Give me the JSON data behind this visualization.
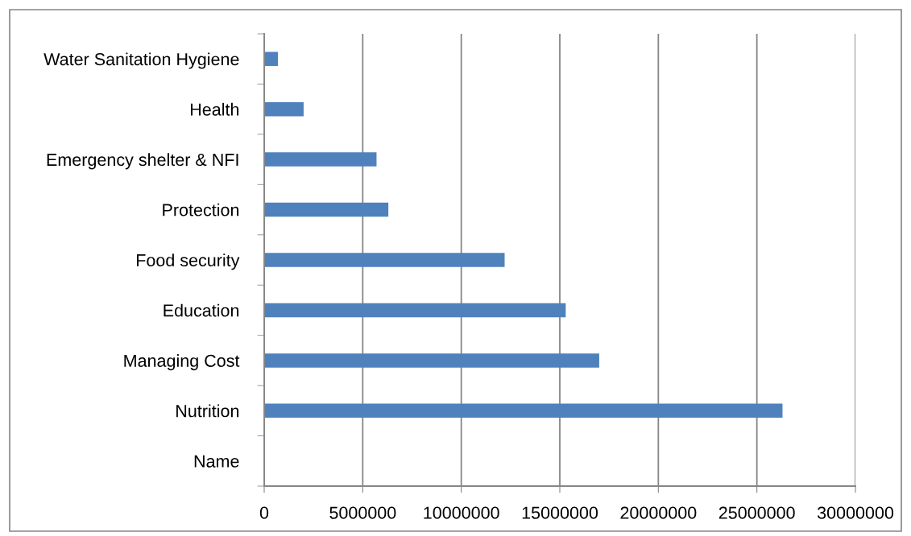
{
  "chart_data": {
    "type": "bar",
    "orientation": "horizontal",
    "categories": [
      "Water Sanitation Hygiene",
      "Health",
      "Emergency shelter & NFI",
      "Protection",
      "Food security",
      "Education",
      "Managing Cost",
      "Nutrition",
      "Name"
    ],
    "values": [
      700000,
      2000000,
      5700000,
      6300000,
      12200000,
      15300000,
      17000000,
      26300000,
      null
    ],
    "color": "#4f81bd",
    "xlim": [
      0,
      30000000
    ],
    "xticks": [
      0,
      5000000,
      10000000,
      15000000,
      20000000,
      25000000,
      30000000
    ],
    "grid": "x",
    "legend": false
  }
}
